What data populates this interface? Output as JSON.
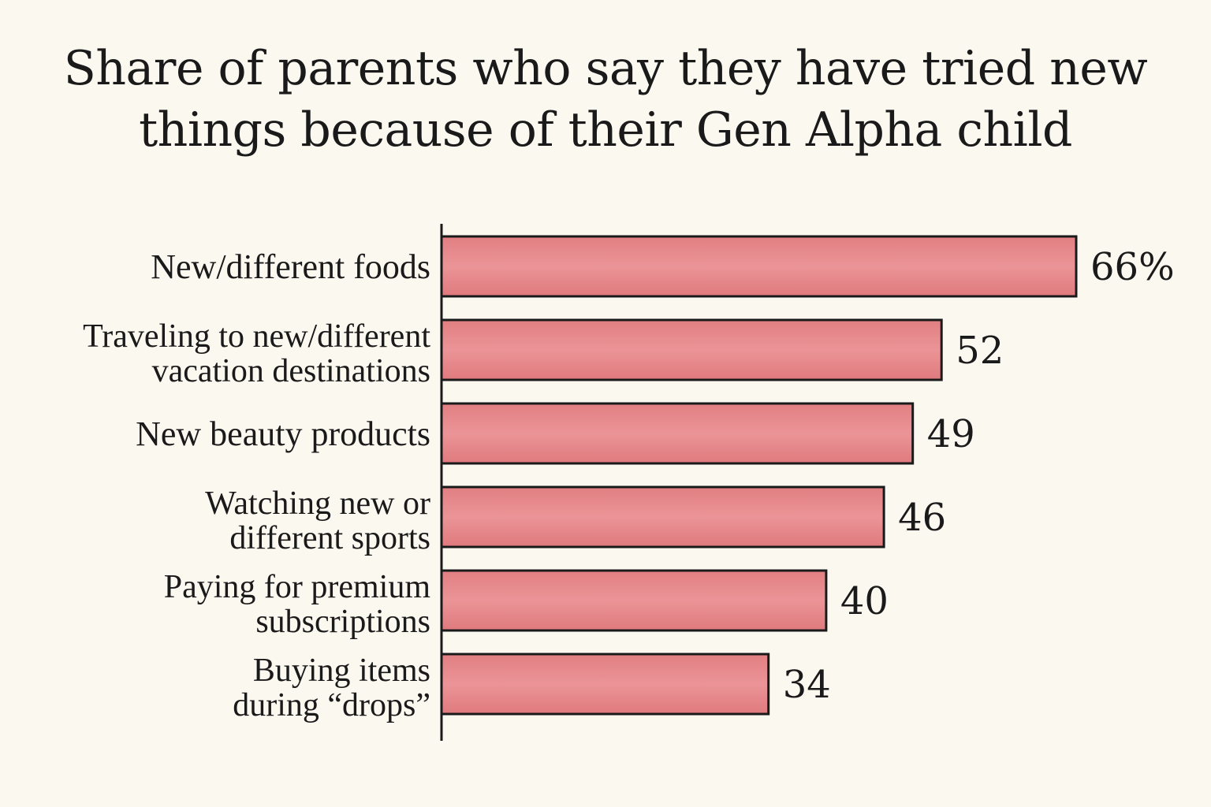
{
  "chart_data": {
    "type": "bar",
    "orientation": "horizontal",
    "title": "Share of parents who say they have tried new things because of their Gen Alpha child",
    "categories": [
      "New/different foods",
      "Traveling to new/different vacation destinations",
      "New beauty products",
      "Watching new or different sports",
      "Paying for premium subscriptions",
      "Buying items during “drops”"
    ],
    "category_lines": [
      [
        "New/different foods"
      ],
      [
        "Traveling to new/different",
        "vacation destinations"
      ],
      [
        "New beauty products"
      ],
      [
        "Watching new or",
        "different sports"
      ],
      [
        "Paying for premium",
        "subscriptions"
      ],
      [
        "Buying items",
        "during “drops”"
      ]
    ],
    "values": [
      66,
      52,
      49,
      46,
      40,
      34
    ],
    "value_labels": [
      "66%",
      "52",
      "49",
      "46",
      "40",
      "34"
    ],
    "xlabel": "",
    "ylabel": "",
    "xlim": [
      0,
      66
    ],
    "grid": false,
    "legend": "none",
    "bar_color": "#e8888a",
    "bar_outline_color": "#1a1a1a"
  }
}
